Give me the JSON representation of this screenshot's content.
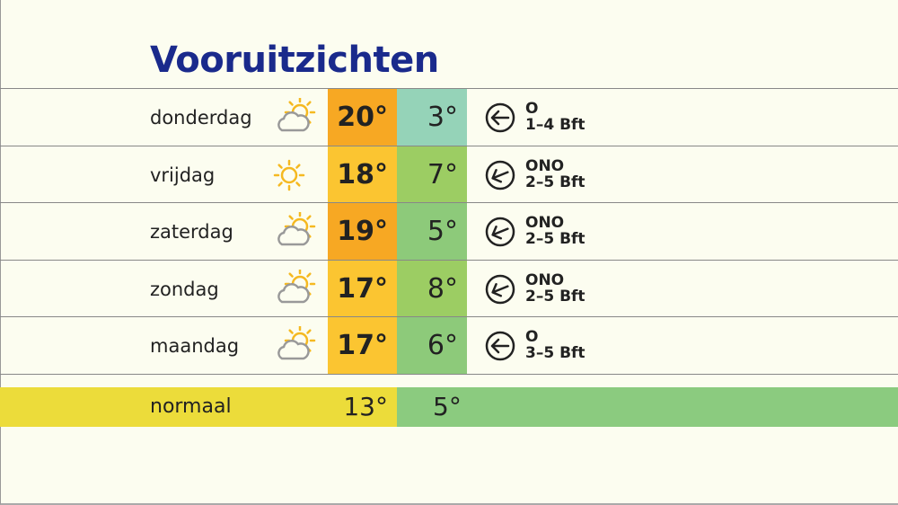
{
  "title": "Vooruitzichten",
  "colors": {
    "title": "#1a2a8c",
    "max_warm": "#f7a823",
    "max_mild": "#fbc531",
    "min_cool": "#95d3b8",
    "min_green": "#9ccd63",
    "min_mid": "#8dca7a",
    "normal_max": "#ecdc3a",
    "normal_min": "#8bcb7f"
  },
  "days": [
    {
      "day": "donderdag",
      "icon": "partly-cloudy-icon",
      "max": "20°",
      "min": "3°",
      "max_color": "#f7a823",
      "min_color": "#95d3b8",
      "wind_dir": "O",
      "wind_force": "1–4 Bft",
      "arrow_rotation_deg": 0
    },
    {
      "day": "vrijdag",
      "icon": "sun-icon",
      "max": "18°",
      "min": "7°",
      "max_color": "#fbc531",
      "min_color": "#9ccd63",
      "wind_dir": "ONO",
      "wind_force": "2–5 Bft",
      "arrow_rotation_deg": -22
    },
    {
      "day": "zaterdag",
      "icon": "partly-cloudy-icon",
      "max": "19°",
      "min": "5°",
      "max_color": "#f7a823",
      "min_color": "#8dca7a",
      "wind_dir": "ONO",
      "wind_force": "2–5 Bft",
      "arrow_rotation_deg": -22
    },
    {
      "day": "zondag",
      "icon": "partly-cloudy-icon",
      "max": "17°",
      "min": "8°",
      "max_color": "#fbc531",
      "min_color": "#9ccd63",
      "wind_dir": "ONO",
      "wind_force": "2–5 Bft",
      "arrow_rotation_deg": -22
    },
    {
      "day": "maandag",
      "icon": "partly-cloudy-icon",
      "max": "17°",
      "min": "6°",
      "max_color": "#fbc531",
      "min_color": "#8dca7a",
      "wind_dir": "O",
      "wind_force": "3–5 Bft",
      "arrow_rotation_deg": 0
    }
  ],
  "normal": {
    "label": "normaal",
    "max": "13°",
    "min": "5°"
  }
}
